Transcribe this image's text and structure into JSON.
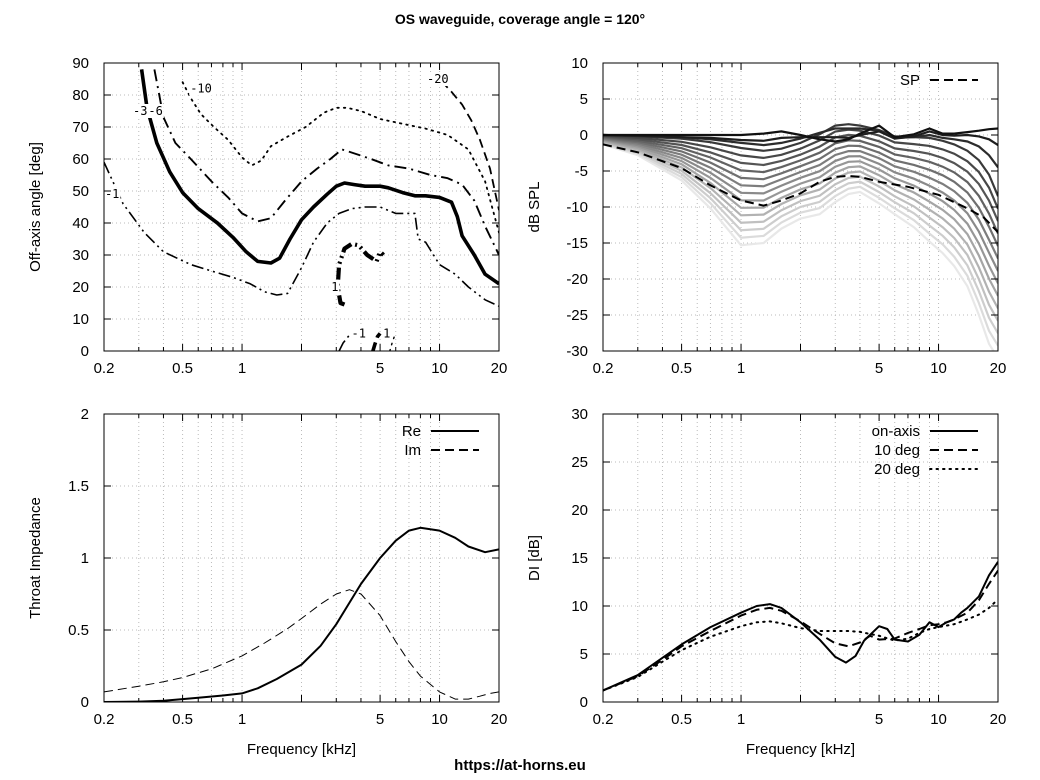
{
  "title": "OS waveguide, coverage angle = 120°",
  "footer_url": "https://at-horns.eu",
  "chart_data": [
    {
      "id": "contour",
      "type": "line",
      "subtype": "contour",
      "xscale": "log",
      "xlim": [
        0.2,
        20
      ],
      "ylim": [
        0,
        90
      ],
      "xticks": [
        "0.2",
        "0.5",
        "1",
        "5",
        "10",
        "20"
      ],
      "yticks": [
        "0",
        "10",
        "20",
        "30",
        "40",
        "50",
        "60",
        "70",
        "80",
        "90"
      ],
      "xlabel": "",
      "ylabel": "Off-axis angle [deg]",
      "grid": true,
      "series": [
        {
          "name": "-1",
          "style": "dashdotdot",
          "width": 1.6,
          "x": [
            0.2,
            0.25,
            0.32,
            0.4,
            0.55,
            0.7,
            0.9,
            1.1,
            1.3,
            1.5,
            1.7,
            2.0,
            2.3,
            2.7,
            3.1,
            3.6,
            4.2,
            5.0,
            6.0,
            7.0,
            7.5,
            7.8,
            8.5,
            10,
            12,
            14,
            17,
            20
          ],
          "y": [
            59,
            46,
            37,
            31,
            27,
            25,
            23,
            21,
            18.5,
            17.5,
            18,
            26,
            34,
            40,
            43,
            44.5,
            45,
            45,
            43,
            43,
            43,
            35,
            34,
            27,
            24,
            20,
            16,
            14
          ],
          "label": "-1",
          "label_at": [
            0.22,
            49
          ]
        },
        {
          "name": "-3",
          "style": "solid",
          "width": 3.6,
          "x": [
            0.31,
            0.33,
            0.37,
            0.43,
            0.5,
            0.6,
            0.75,
            0.9,
            1.05,
            1.2,
            1.4,
            1.55,
            1.75,
            2.0,
            2.3,
            2.7,
            3.0,
            3.3,
            3.7,
            4.2,
            5.0,
            5.5,
            6.5,
            7.5,
            8.5,
            10,
            11.5,
            12.3,
            13,
            15,
            17,
            20
          ],
          "y": [
            88,
            76,
            65,
            56,
            49.5,
            44.5,
            40,
            35.5,
            31,
            28,
            27.5,
            29,
            35,
            41,
            45,
            49,
            51.5,
            52.5,
            52,
            51.5,
            51.5,
            51,
            49.5,
            48.5,
            48.5,
            48,
            46.5,
            42,
            36,
            30,
            24,
            21
          ],
          "label": "-3",
          "label_at": [
            0.305,
            75
          ]
        },
        {
          "name": "-6",
          "style": "dashdot",
          "width": 1.9,
          "x": [
            0.36,
            0.4,
            0.46,
            0.55,
            0.7,
            0.85,
            1.0,
            1.2,
            1.4,
            1.65,
            2.0,
            2.4,
            2.8,
            3.2,
            3.6,
            4.5,
            5.5,
            7,
            9,
            11,
            13,
            15,
            17,
            20
          ],
          "y": [
            88,
            73,
            65,
            60,
            53,
            48,
            43,
            40.5,
            41.5,
            47,
            53,
            57,
            60,
            63,
            62,
            60,
            58,
            57,
            55,
            54,
            52,
            47,
            39,
            30
          ],
          "label": "-6",
          "label_at": [
            0.365,
            75
          ]
        },
        {
          "name": "-10",
          "style": "dotted",
          "width": 1.8,
          "x": [
            0.5,
            0.55,
            0.62,
            0.72,
            0.85,
            1.0,
            1.12,
            1.25,
            1.4,
            1.7,
            2.1,
            2.6,
            3.0,
            3.4,
            4.0,
            5.0,
            6.5,
            8.5,
            11,
            14,
            17,
            20
          ],
          "y": [
            84,
            79,
            74,
            70,
            66,
            60.5,
            58,
            59.5,
            64,
            67,
            70,
            74.5,
            76,
            76,
            75,
            72.5,
            71,
            69.5,
            67.5,
            63,
            53,
            37
          ],
          "label": "-10",
          "label_at": [
            0.62,
            82
          ]
        },
        {
          "name": "-20",
          "style": "dashed",
          "width": 1.8,
          "x": [
            9,
            10,
            11.5,
            13,
            14.5,
            16,
            18,
            20
          ],
          "y": [
            87,
            85,
            81,
            77,
            72,
            66,
            57,
            44
          ],
          "label": "-20",
          "label_at": [
            9.8,
            85
          ]
        },
        {
          "name": "1",
          "style": "dashdotdot",
          "width": 4.2,
          "x": [
            3.3,
            3.15,
            3.05,
            3.1,
            3.3,
            3.6,
            3.9,
            4.3,
            4.8,
            5.0,
            5.2
          ],
          "y": [
            14.5,
            15,
            20,
            27,
            32,
            33.5,
            33,
            30,
            28,
            31,
            30
          ],
          "label": "1",
          "label_at": [
            2.95,
            20
          ]
        },
        {
          "name": "1b",
          "style": "dashed",
          "width": 3.6,
          "x": [
            4.6,
            4.7,
            4.85,
            5.0
          ],
          "y": [
            0,
            2,
            4.5,
            5.5
          ],
          "label": "1",
          "label_at": [
            5.4,
            5.5
          ]
        },
        {
          "name": "-1b",
          "style": "dashdotdot",
          "width": 1.6,
          "x": [
            3.1,
            3.25,
            3.5,
            3.8
          ],
          "y": [
            0,
            2.5,
            5,
            6
          ],
          "label": "-1",
          "label_at": [
            3.9,
            5.5
          ]
        },
        {
          "name": "-1c",
          "style": "dotted",
          "width": 1.4,
          "x": [
            5.6,
            5.75,
            5.9
          ],
          "y": [
            0,
            2.5,
            4.5
          ],
          "label": "",
          "label_at": [
            5.7,
            2
          ]
        }
      ]
    },
    {
      "id": "spl",
      "type": "line",
      "xscale": "log",
      "xlim": [
        0.2,
        20
      ],
      "ylim": [
        -30,
        10
      ],
      "xticks": [
        "0.2",
        "0.5",
        "1",
        "5",
        "10",
        "20"
      ],
      "yticks": [
        "-30",
        "-25",
        "-20",
        "-15",
        "-10",
        "-5",
        "0",
        "5",
        "10"
      ],
      "xlabel": "",
      "ylabel": "dB SPL",
      "grid": true,
      "legend": {
        "position": "top-right",
        "entries": [
          {
            "label": "SP",
            "style": "dashed"
          }
        ]
      },
      "series": [
        {
          "name": "SP",
          "style": "dashed",
          "color": "#000000",
          "x": [
            0.2,
            0.3,
            0.5,
            0.7,
            1.0,
            1.3,
            1.6,
            2.0,
            2.5,
            3.0,
            3.5,
            4.0,
            5.0,
            7.0,
            10,
            14,
            17,
            20
          ],
          "y": [
            -1.3,
            -2.4,
            -4.6,
            -7.0,
            -9.1,
            -9.8,
            -9.1,
            -8.1,
            -6.5,
            -5.8,
            -5.7,
            -5.8,
            -6.5,
            -7.2,
            -8.3,
            -10.2,
            -11.5,
            -13.5
          ]
        }
      ],
      "family": {
        "count": 17,
        "color_start": "#111111",
        "color_end": "#e8e8e8",
        "x": [
          0.2,
          0.3,
          0.5,
          0.7,
          1.0,
          1.3,
          1.6,
          2.0,
          2.5,
          3.0,
          3.5,
          4.0,
          5.0,
          6.0,
          7.5,
          9.0,
          10.5,
          12,
          14,
          16,
          18,
          20
        ],
        "y": [
          [
            0,
            0,
            0,
            0,
            0,
            0.2,
            0.5,
            0,
            -0.6,
            -0.9,
            -0.6,
            0.2,
            1.3,
            -0.3,
            0.1,
            0.9,
            0.2,
            0.2,
            0.4,
            0.6,
            0.8,
            0.9
          ],
          [
            0,
            -0.1,
            -0.3,
            -0.4,
            -0.7,
            -0.8,
            -0.4,
            -0.3,
            -0.3,
            -0.3,
            -0.4,
            0.0,
            0.5,
            -0.5,
            -0.2,
            0.5,
            0.0,
            -0.1,
            0.0,
            -0.2,
            -0.6,
            -1.4
          ],
          [
            0,
            -0.1,
            -0.3,
            -0.6,
            -1.1,
            -1.4,
            -1.1,
            -0.5,
            0.3,
            0.9,
            0.9,
            0.9,
            0.6,
            -0.4,
            -0.3,
            0.0,
            -0.4,
            -0.6,
            -0.9,
            -1.6,
            -2.8,
            -4.5
          ],
          [
            0,
            -0.2,
            -0.5,
            -1.0,
            -1.8,
            -2.2,
            -1.9,
            -1.1,
            0.1,
            1.3,
            1.5,
            1.3,
            0.7,
            -0.2,
            -0.3,
            -0.4,
            -0.8,
            -1.3,
            -2.2,
            -3.5,
            -5.5,
            -8.5
          ]
        ],
        "min_y": [
          -1.3,
          -2.8,
          -6.3,
          -10.2,
          -15.3,
          -15.0,
          -13.0,
          -11.6,
          -11.0,
          -9.3,
          -8.2,
          -7.9,
          -9.5,
          -11.0,
          -12.8,
          -14.8,
          -16.4,
          -18.2,
          -21.0,
          -25.0,
          -29.0,
          -31.0
        ]
      }
    },
    {
      "id": "impedance",
      "type": "line",
      "xscale": "log",
      "xlim": [
        0.2,
        20
      ],
      "ylim": [
        0,
        2
      ],
      "xticks": [
        "0.2",
        "0.5",
        "1",
        "5",
        "10",
        "20"
      ],
      "yticks": [
        "0",
        "0.5",
        "1",
        "1.5",
        "2"
      ],
      "xlabel": "Frequency [kHz]",
      "ylabel": "Throat Impedance",
      "grid": true,
      "legend": {
        "position": "top-right",
        "entries": [
          {
            "label": "Re",
            "style": "solid"
          },
          {
            "label": "Im",
            "style": "dashed"
          }
        ]
      },
      "series": [
        {
          "name": "Re",
          "style": "solid",
          "width": 2,
          "x": [
            0.2,
            0.3,
            0.4,
            0.5,
            0.6,
            0.8,
            1.0,
            1.2,
            1.5,
            2.0,
            2.5,
            3.0,
            3.5,
            4.0,
            5.0,
            6.0,
            7.0,
            8.0,
            10,
            12,
            14,
            17,
            20
          ],
          "y": [
            0.0,
            0.003,
            0.008,
            0.02,
            0.03,
            0.045,
            0.06,
            0.095,
            0.16,
            0.26,
            0.39,
            0.54,
            0.69,
            0.82,
            1.0,
            1.12,
            1.19,
            1.21,
            1.19,
            1.14,
            1.08,
            1.04,
            1.06
          ]
        },
        {
          "name": "Im",
          "style": "dashed",
          "width": 1,
          "x": [
            0.2,
            0.3,
            0.4,
            0.5,
            0.7,
            1.0,
            1.3,
            1.7,
            2.0,
            2.5,
            3.0,
            3.5,
            4.0,
            5.0,
            6.0,
            7.0,
            8.0,
            10,
            12,
            14,
            16,
            18,
            20
          ],
          "y": [
            0.07,
            0.11,
            0.14,
            0.17,
            0.23,
            0.32,
            0.41,
            0.51,
            0.58,
            0.68,
            0.75,
            0.78,
            0.75,
            0.6,
            0.42,
            0.28,
            0.18,
            0.07,
            0.02,
            0.02,
            0.04,
            0.06,
            0.07
          ]
        }
      ]
    },
    {
      "id": "di",
      "type": "line",
      "xscale": "log",
      "xlim": [
        0.2,
        20
      ],
      "ylim": [
        0,
        30
      ],
      "xticks": [
        "0.2",
        "0.5",
        "1",
        "5",
        "10",
        "20"
      ],
      "yticks": [
        "0",
        "5",
        "10",
        "15",
        "20",
        "25",
        "30"
      ],
      "xlabel": "Frequency [kHz]",
      "ylabel": "DI [dB]",
      "grid": true,
      "legend": {
        "position": "top-right",
        "entries": [
          {
            "label": "on-axis",
            "style": "solid"
          },
          {
            "label": "10 deg",
            "style": "dashed"
          },
          {
            "label": "20 deg",
            "style": "dotted"
          }
        ]
      },
      "series": [
        {
          "name": "on-axis",
          "style": "solid",
          "width": 2,
          "x": [
            0.2,
            0.3,
            0.4,
            0.5,
            0.7,
            1.0,
            1.2,
            1.4,
            1.6,
            2.0,
            2.5,
            3.0,
            3.4,
            3.8,
            4.2,
            5.0,
            5.5,
            6.0,
            7.0,
            8.0,
            9.0,
            10,
            11,
            12,
            13,
            14,
            16,
            18,
            20
          ],
          "y": [
            1.2,
            2.8,
            4.6,
            6.0,
            7.8,
            9.3,
            10.0,
            10.2,
            9.8,
            8.3,
            6.5,
            4.7,
            4.1,
            4.8,
            6.4,
            7.9,
            7.6,
            6.5,
            6.3,
            7.0,
            8.3,
            7.8,
            8.3,
            8.6,
            9.3,
            9.8,
            11.0,
            13.2,
            14.6
          ]
        },
        {
          "name": "10 deg",
          "style": "dashed",
          "width": 2,
          "x": [
            0.2,
            0.3,
            0.4,
            0.5,
            0.7,
            1.0,
            1.2,
            1.4,
            1.6,
            2.0,
            2.5,
            3.0,
            3.5,
            4.0,
            4.5,
            5.0,
            6.0,
            7.0,
            8.0,
            9.0,
            10,
            11,
            12,
            14,
            16,
            18,
            20
          ],
          "y": [
            1.2,
            2.7,
            4.4,
            5.8,
            7.4,
            9.0,
            9.6,
            9.8,
            9.5,
            8.4,
            7.1,
            6.1,
            5.8,
            6.2,
            6.9,
            6.5,
            6.6,
            7.2,
            7.6,
            8.0,
            8.1,
            8.3,
            8.6,
            9.3,
            10.6,
            12.3,
            13.7
          ]
        },
        {
          "name": "20 deg",
          "style": "dotted",
          "width": 2,
          "x": [
            0.2,
            0.3,
            0.4,
            0.5,
            0.7,
            1.0,
            1.2,
            1.4,
            1.6,
            2.0,
            2.5,
            3.0,
            3.5,
            4.0,
            5.0,
            6.0,
            7.0,
            8.0,
            9.0,
            10,
            12,
            14,
            16,
            18,
            20
          ],
          "y": [
            1.2,
            2.6,
            4.2,
            5.4,
            6.8,
            7.9,
            8.3,
            8.4,
            8.2,
            7.7,
            7.4,
            7.4,
            7.4,
            7.3,
            6.9,
            6.4,
            6.6,
            7.2,
            7.6,
            7.8,
            8.1,
            8.6,
            9.1,
            9.8,
            10.7
          ]
        }
      ]
    }
  ]
}
